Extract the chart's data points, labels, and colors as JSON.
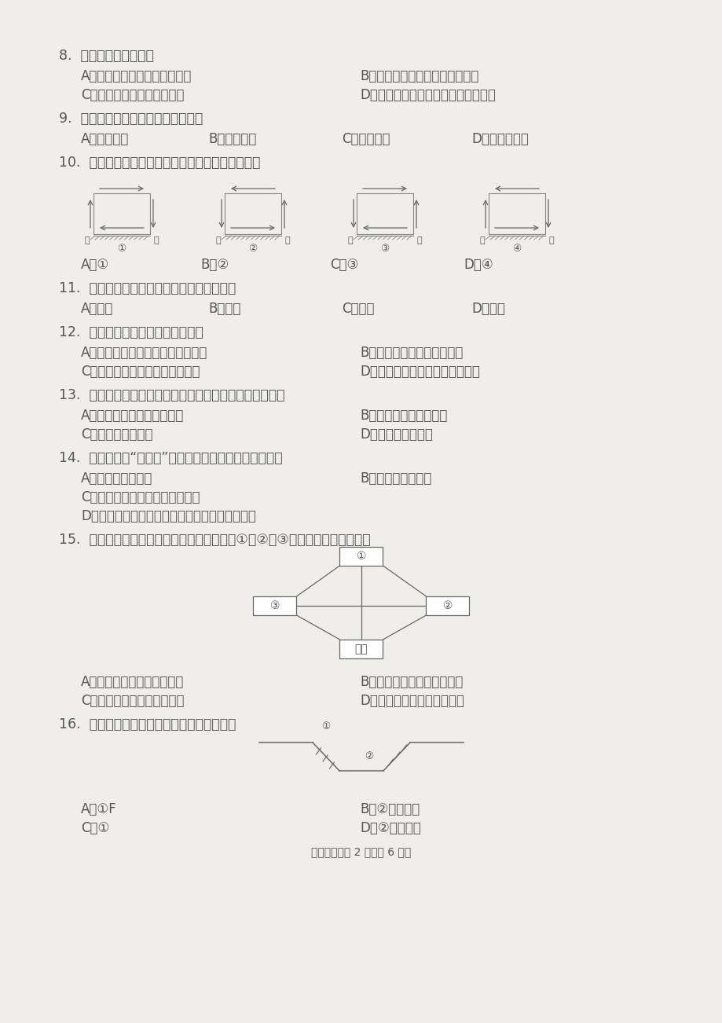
{
  "bg_color": "#f0eeea",
  "text_color": "#555555",
  "q8_text": "8.  岩石圈是指地球内部",
  "q8_a": "A．莫霍界面到地表之间的部分",
  "q8_b": "B．古登堡界面到地表之间的部分",
  "q8_c": "C．软流层到地表之间的部分",
  "q8_d": "D．莫霍界面和古登堡界面之间的部分",
  "q9_text": "9.  近地面大气的热量主要来自于吸收",
  "q9_a": "A．太阳辐射",
  "q9_b": "B．地面辐射",
  "q9_c": "C．大气辐射",
  "q9_d": "D．大气逆辐射",
  "q10_text": "10.  下面四幅图中，能正确表示南半球低纬环流的是",
  "q10_a": "A．①",
  "q10_b": "B．②",
  "q10_c": "C．③",
  "q10_d": "D．④",
  "q11_text": "11.  形成由赤道到两极地域分异规律的基础是",
  "q11_a": "A．热量",
  "q11_b": "B．水分",
  "q11_c": "C．地形",
  "q11_d": "D．洋流",
  "q12_text": "12.  下列关于洋流的说法，正确的是",
  "q12_a": "A．其形成的主要动力是地转偏向力",
  "q12_b": "B．由南向北流的洋流为暖流",
  "q12_c": "C．中低纬度海区大洋西岸为暖流",
  "q12_d": "D．由低纬流向高纬的洋流为寒流",
  "q13_text": "13.  目前，人类比较容易利用的淡水资源除河流水外，还有",
  "q13_a": "A．淡水湖泊水和浅层地下水",
  "q13_b": "B．冰川水和淡水湖泊水",
  "q13_c": "C．生物水和沼泽水",
  "q13_d": "D．湖泊水和土壤水",
  "q14_text": "14.  黄河下游为“地上河”，其河水与地下水的相互关系是",
  "q14_a": "A．河水补给地下水",
  "q14_b": "B．地下水补给河水",
  "q14_c": "C．河水与地下水无相互补给关系",
  "q14_d": "D．汛期河水补给地下水，枯水期地下水补给河水",
  "q15_text": "15.  下图为岩石圈物质循环示意图，图中数码①、②、③代表的岩石类型依次是",
  "q15_a": "A．岩浆岩、沉积岩、变质岩",
  "q15_b": "B．变质岩、岩浆岩、沉积岩",
  "q15_c": "C．沉积岩、岩浆岩、变质岩",
  "q15_d": "D．沉积岩、变质岩、岩浆岩",
  "q16_text": "16.  下列地形中，其成因与图中数码相符的是",
  "q16_a": "A．①F",
  "q16_b": "B．②渭河平原",
  "q16_c": "C．①",
  "q16_d": "D．②成都平原",
  "footer": "调研测试题第 2 页（共 6 页）"
}
